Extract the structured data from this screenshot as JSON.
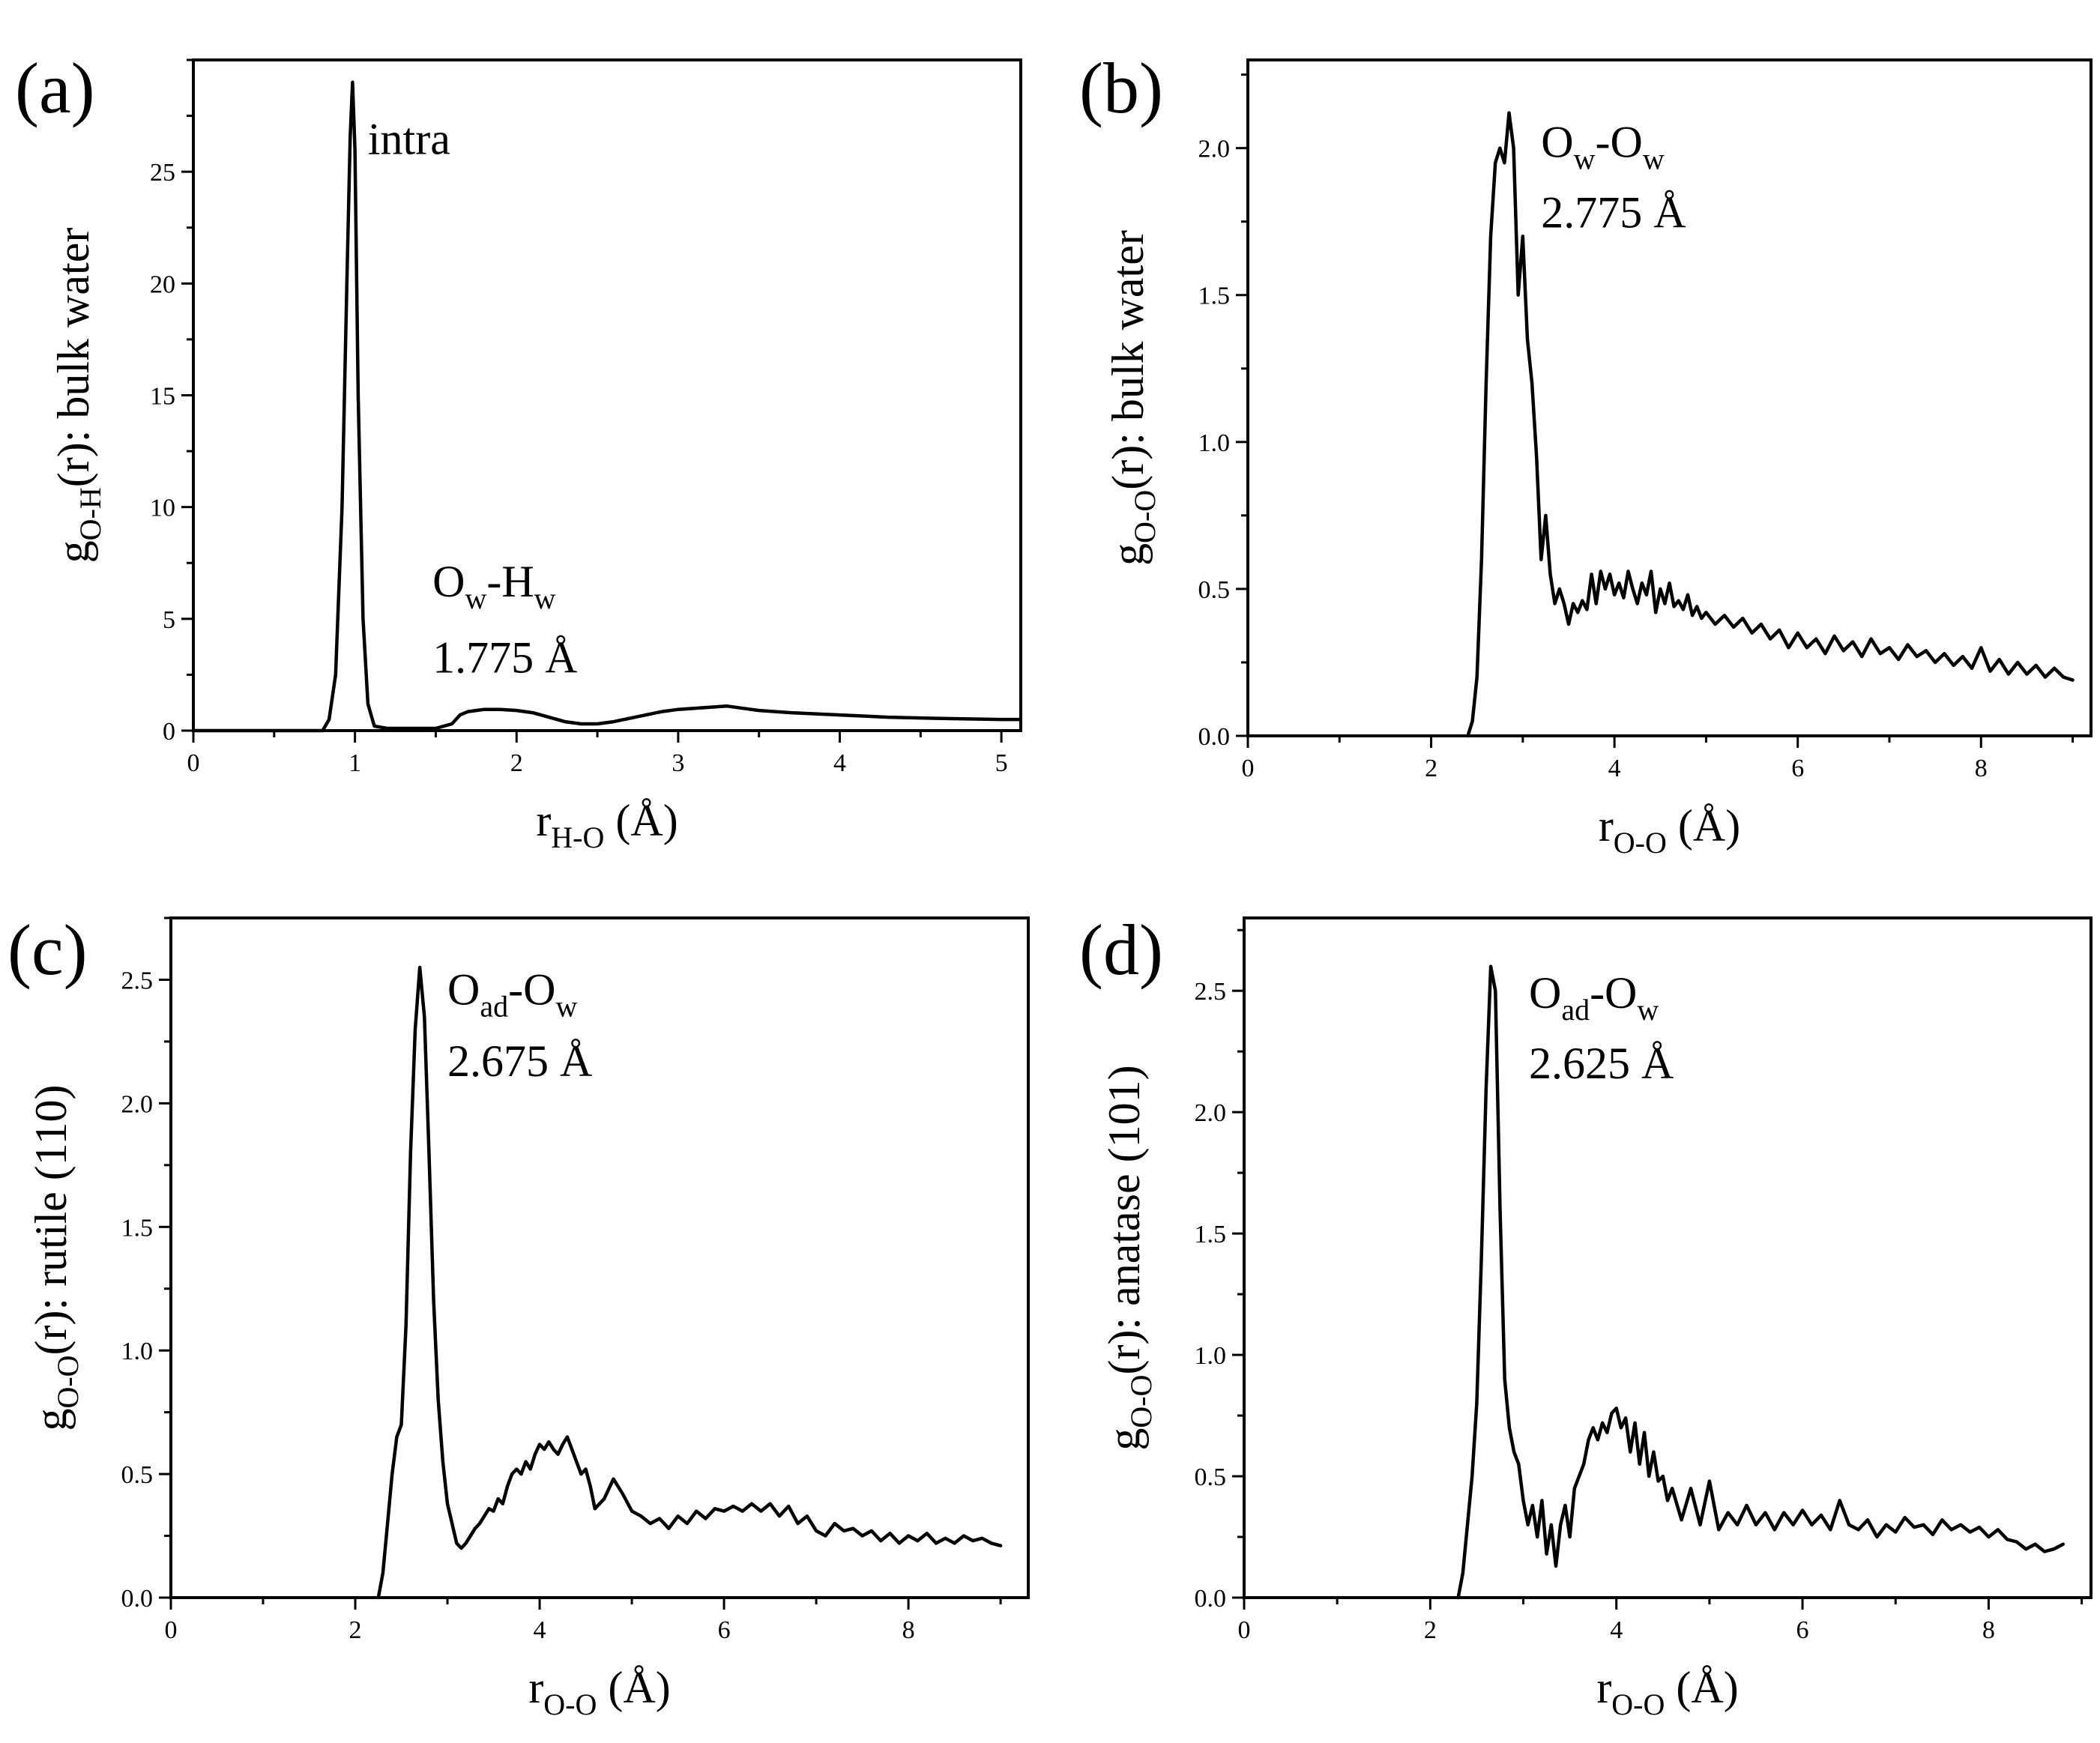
{
  "chart_data": [
    {
      "panel": "(a)",
      "type": "line",
      "xlabel": {
        "main": "r",
        "sub": "H-O",
        "unit": " (Å)"
      },
      "ylabel": {
        "main": "g",
        "sub": "O-H",
        "rest": "(r):  bulk water"
      },
      "xlim": [
        0,
        5.12
      ],
      "ylim": [
        0,
        30
      ],
      "xticks": [
        0,
        1,
        2,
        3,
        4,
        5
      ],
      "xtick_labels": [
        "0",
        "1",
        "2",
        "3",
        "4",
        "5"
      ],
      "yticks": [
        0,
        5,
        10,
        15,
        20,
        25
      ],
      "ytick_labels": [
        "0",
        "5",
        "10",
        "15",
        "20",
        "25"
      ],
      "annotations": [
        {
          "id": "intra",
          "parts": [
            {
              "t": "intra",
              "sub": false
            }
          ],
          "x": 1.08,
          "y": 25.8
        },
        {
          "id": "label-ow-hw",
          "parts": [
            {
              "t": "O",
              "sub": false
            },
            {
              "t": "w",
              "sub": true
            },
            {
              "t": "-H",
              "sub": false
            },
            {
              "t": "w",
              "sub": true
            }
          ],
          "x": 1.48,
          "y": 6.0
        },
        {
          "id": "distance-1775",
          "parts": [
            {
              "t": "1.775 Å",
              "sub": false
            }
          ],
          "x": 1.48,
          "y": 2.6
        }
      ],
      "series": [
        {
          "name": "g_O-H bulk water",
          "x": [
            0,
            0.8,
            0.84,
            0.88,
            0.92,
            0.95,
            0.97,
            0.985,
            1.0,
            1.02,
            1.05,
            1.08,
            1.12,
            1.2,
            1.5,
            1.6,
            1.65,
            1.7,
            1.75,
            1.8,
            1.9,
            2.0,
            2.1,
            2.2,
            2.3,
            2.4,
            2.5,
            2.6,
            2.7,
            2.8,
            2.9,
            3.0,
            3.1,
            3.2,
            3.3,
            3.4,
            3.5,
            3.7,
            4.0,
            4.3,
            4.6,
            5.0,
            5.12
          ],
          "y": [
            0,
            0,
            0.5,
            2.5,
            10,
            20,
            26.5,
            29,
            26,
            15,
            5,
            1.2,
            0.2,
            0.1,
            0.1,
            0.3,
            0.7,
            0.85,
            0.9,
            0.95,
            0.95,
            0.9,
            0.8,
            0.6,
            0.4,
            0.3,
            0.3,
            0.4,
            0.55,
            0.7,
            0.85,
            0.95,
            1.0,
            1.05,
            1.1,
            1.0,
            0.9,
            0.8,
            0.7,
            0.6,
            0.55,
            0.5,
            0.5
          ]
        }
      ]
    },
    {
      "panel": "(b)",
      "type": "line",
      "xlabel": {
        "main": "r",
        "sub": "O-O",
        "unit": " (Å)"
      },
      "ylabel": {
        "main": "g",
        "sub": "O-O",
        "rest": "(r):  bulk water"
      },
      "xlim": [
        0,
        9.2
      ],
      "ylim": [
        0,
        2.3
      ],
      "xticks": [
        0,
        2,
        4,
        6,
        8
      ],
      "xtick_labels": [
        "0",
        "2",
        "4",
        "6",
        "8"
      ],
      "yticks": [
        0.0,
        0.5,
        1.0,
        1.5,
        2.0
      ],
      "ytick_labels": [
        "0.0",
        "0.5",
        "1.0",
        "1.5",
        "2.0"
      ],
      "annotations": [
        {
          "id": "label-ow-ow",
          "parts": [
            {
              "t": "O",
              "sub": false
            },
            {
              "t": "w",
              "sub": true
            },
            {
              "t": "-O",
              "sub": false
            },
            {
              "t": "w",
              "sub": true
            }
          ],
          "x": 3.2,
          "y": 1.97
        },
        {
          "id": "distance-2775",
          "parts": [
            {
              "t": "2.775 Å",
              "sub": false
            }
          ],
          "x": 3.2,
          "y": 1.73
        }
      ],
      "series": [
        {
          "name": "g_O-O bulk water",
          "x": [
            2.4,
            2.45,
            2.5,
            2.55,
            2.6,
            2.65,
            2.7,
            2.75,
            2.8,
            2.85,
            2.9,
            2.95,
            3.0,
            3.05,
            3.1,
            3.15,
            3.2,
            3.25,
            3.3,
            3.35,
            3.4,
            3.45,
            3.5,
            3.55,
            3.6,
            3.65,
            3.7,
            3.75,
            3.8,
            3.85,
            3.9,
            3.95,
            4.0,
            4.05,
            4.1,
            4.15,
            4.2,
            4.25,
            4.3,
            4.35,
            4.4,
            4.45,
            4.5,
            4.55,
            4.6,
            4.65,
            4.7,
            4.75,
            4.8,
            4.85,
            4.9,
            4.95,
            5.0,
            5.1,
            5.2,
            5.3,
            5.4,
            5.5,
            5.6,
            5.7,
            5.8,
            5.9,
            6.0,
            6.1,
            6.2,
            6.3,
            6.4,
            6.5,
            6.6,
            6.7,
            6.8,
            6.9,
            7.0,
            7.1,
            7.2,
            7.3,
            7.4,
            7.5,
            7.6,
            7.7,
            7.8,
            7.9,
            8.0,
            8.1,
            8.2,
            8.3,
            8.4,
            8.5,
            8.6,
            8.7,
            8.8,
            8.9,
            9.0
          ],
          "y": [
            0.0,
            0.05,
            0.2,
            0.6,
            1.2,
            1.7,
            1.95,
            2.0,
            1.95,
            2.12,
            2.0,
            1.5,
            1.7,
            1.35,
            1.2,
            0.95,
            0.6,
            0.75,
            0.55,
            0.45,
            0.5,
            0.45,
            0.38,
            0.45,
            0.42,
            0.46,
            0.43,
            0.55,
            0.45,
            0.56,
            0.5,
            0.55,
            0.48,
            0.52,
            0.47,
            0.56,
            0.5,
            0.45,
            0.52,
            0.48,
            0.56,
            0.42,
            0.5,
            0.45,
            0.52,
            0.44,
            0.46,
            0.43,
            0.48,
            0.41,
            0.44,
            0.4,
            0.42,
            0.38,
            0.41,
            0.37,
            0.4,
            0.35,
            0.38,
            0.33,
            0.36,
            0.3,
            0.35,
            0.3,
            0.33,
            0.28,
            0.34,
            0.29,
            0.32,
            0.27,
            0.33,
            0.28,
            0.3,
            0.26,
            0.31,
            0.27,
            0.29,
            0.25,
            0.28,
            0.24,
            0.27,
            0.23,
            0.3,
            0.22,
            0.26,
            0.21,
            0.25,
            0.21,
            0.24,
            0.2,
            0.23,
            0.2,
            0.19
          ]
        }
      ]
    },
    {
      "panel": "(c)",
      "type": "line",
      "xlabel": {
        "main": "r",
        "sub": "O-O",
        "unit": " (Å)"
      },
      "ylabel": {
        "main": "g",
        "sub": "O-O",
        "rest": "(r):  rutile (110)"
      },
      "xlim": [
        0,
        9.3
      ],
      "ylim": [
        0,
        2.75
      ],
      "xticks": [
        0,
        2,
        4,
        6,
        8
      ],
      "xtick_labels": [
        "0",
        "2",
        "4",
        "6",
        "8"
      ],
      "yticks": [
        0.0,
        0.5,
        1.0,
        1.5,
        2.0,
        2.5
      ],
      "ytick_labels": [
        "0.0",
        "0.5",
        "1.0",
        "1.5",
        "2.0",
        "2.5"
      ],
      "annotations": [
        {
          "id": "label-oad-ow",
          "parts": [
            {
              "t": "O",
              "sub": false
            },
            {
              "t": "ad",
              "sub": true
            },
            {
              "t": "-O",
              "sub": false
            },
            {
              "t": "w",
              "sub": true
            }
          ],
          "x": 3.0,
          "y": 2.4
        },
        {
          "id": "distance-2675",
          "parts": [
            {
              "t": "2.675 Å",
              "sub": false
            }
          ],
          "x": 3.0,
          "y": 2.11
        }
      ],
      "series": [
        {
          "name": "g_O-O rutile (110)",
          "x": [
            2.25,
            2.3,
            2.35,
            2.4,
            2.45,
            2.5,
            2.55,
            2.6,
            2.65,
            2.7,
            2.75,
            2.8,
            2.85,
            2.9,
            2.95,
            3.0,
            3.05,
            3.1,
            3.15,
            3.2,
            3.25,
            3.3,
            3.35,
            3.4,
            3.45,
            3.5,
            3.55,
            3.6,
            3.65,
            3.7,
            3.75,
            3.8,
            3.85,
            3.9,
            3.95,
            4.0,
            4.05,
            4.1,
            4.15,
            4.2,
            4.25,
            4.3,
            4.35,
            4.4,
            4.45,
            4.5,
            4.55,
            4.6,
            4.7,
            4.8,
            4.9,
            5.0,
            5.1,
            5.2,
            5.3,
            5.4,
            5.5,
            5.6,
            5.7,
            5.8,
            5.9,
            6.0,
            6.1,
            6.2,
            6.3,
            6.4,
            6.5,
            6.6,
            6.7,
            6.8,
            6.9,
            7.0,
            7.1,
            7.2,
            7.3,
            7.4,
            7.5,
            7.6,
            7.7,
            7.8,
            7.9,
            8.0,
            8.1,
            8.2,
            8.3,
            8.4,
            8.5,
            8.6,
            8.7,
            8.8,
            8.9,
            9.0
          ],
          "y": [
            0.0,
            0.1,
            0.3,
            0.5,
            0.65,
            0.7,
            1.1,
            1.8,
            2.3,
            2.55,
            2.35,
            1.8,
            1.2,
            0.8,
            0.55,
            0.38,
            0.3,
            0.22,
            0.2,
            0.22,
            0.25,
            0.28,
            0.3,
            0.33,
            0.36,
            0.35,
            0.4,
            0.38,
            0.45,
            0.5,
            0.52,
            0.5,
            0.55,
            0.52,
            0.58,
            0.62,
            0.6,
            0.63,
            0.6,
            0.58,
            0.62,
            0.65,
            0.6,
            0.55,
            0.5,
            0.52,
            0.45,
            0.36,
            0.4,
            0.48,
            0.42,
            0.35,
            0.33,
            0.3,
            0.32,
            0.28,
            0.33,
            0.3,
            0.35,
            0.32,
            0.36,
            0.35,
            0.37,
            0.35,
            0.38,
            0.35,
            0.38,
            0.33,
            0.37,
            0.3,
            0.33,
            0.27,
            0.25,
            0.3,
            0.27,
            0.28,
            0.25,
            0.27,
            0.23,
            0.26,
            0.22,
            0.25,
            0.23,
            0.26,
            0.22,
            0.24,
            0.22,
            0.25,
            0.23,
            0.24,
            0.22,
            0.21
          ]
        }
      ]
    },
    {
      "panel": "(d)",
      "type": "line",
      "xlabel": {
        "main": "r",
        "sub": "O-O",
        "unit": " (Å)"
      },
      "ylabel": {
        "main": "g",
        "sub": "O-O",
        "rest": "(r):  anatase (101)"
      },
      "xlim": [
        0,
        9.1
      ],
      "ylim": [
        0,
        2.8
      ],
      "xticks": [
        0,
        2,
        4,
        6,
        8
      ],
      "xtick_labels": [
        "0",
        "2",
        "4",
        "6",
        "8"
      ],
      "yticks": [
        0.0,
        0.5,
        1.0,
        1.5,
        2.0,
        2.5
      ],
      "ytick_labels": [
        "0.0",
        "0.5",
        "1.0",
        "1.5",
        "2.0",
        "2.5"
      ],
      "annotations": [
        {
          "id": "label-oad-ow",
          "parts": [
            {
              "t": "O",
              "sub": false
            },
            {
              "t": "ad",
              "sub": true
            },
            {
              "t": "-O",
              "sub": false
            },
            {
              "t": "w",
              "sub": true
            }
          ],
          "x": 3.06,
          "y": 2.43
        },
        {
          "id": "distance-2625",
          "parts": [
            {
              "t": "2.625 Å",
              "sub": false
            }
          ],
          "x": 3.06,
          "y": 2.14
        }
      ],
      "series": [
        {
          "name": "g_O-O anatase (101)",
          "x": [
            2.3,
            2.35,
            2.4,
            2.45,
            2.5,
            2.55,
            2.6,
            2.65,
            2.7,
            2.75,
            2.8,
            2.85,
            2.9,
            2.95,
            3.0,
            3.05,
            3.1,
            3.15,
            3.2,
            3.25,
            3.3,
            3.35,
            3.4,
            3.45,
            3.5,
            3.55,
            3.6,
            3.65,
            3.7,
            3.75,
            3.8,
            3.85,
            3.9,
            3.95,
            4.0,
            4.05,
            4.1,
            4.15,
            4.2,
            4.25,
            4.3,
            4.35,
            4.4,
            4.45,
            4.5,
            4.55,
            4.6,
            4.7,
            4.8,
            4.9,
            5.0,
            5.1,
            5.2,
            5.3,
            5.4,
            5.5,
            5.6,
            5.7,
            5.8,
            5.9,
            6.0,
            6.1,
            6.2,
            6.3,
            6.4,
            6.5,
            6.6,
            6.7,
            6.8,
            6.9,
            7.0,
            7.1,
            7.2,
            7.3,
            7.4,
            7.5,
            7.6,
            7.7,
            7.8,
            7.9,
            8.0,
            8.1,
            8.2,
            8.3,
            8.4,
            8.5,
            8.6,
            8.7,
            8.8
          ],
          "y": [
            0.0,
            0.1,
            0.3,
            0.5,
            0.8,
            1.4,
            2.1,
            2.6,
            2.5,
            1.6,
            0.9,
            0.7,
            0.6,
            0.55,
            0.4,
            0.3,
            0.38,
            0.25,
            0.4,
            0.18,
            0.3,
            0.13,
            0.3,
            0.38,
            0.25,
            0.45,
            0.5,
            0.55,
            0.65,
            0.7,
            0.65,
            0.72,
            0.68,
            0.76,
            0.78,
            0.7,
            0.74,
            0.6,
            0.72,
            0.55,
            0.68,
            0.5,
            0.6,
            0.48,
            0.5,
            0.4,
            0.45,
            0.32,
            0.45,
            0.3,
            0.48,
            0.28,
            0.35,
            0.3,
            0.38,
            0.3,
            0.35,
            0.28,
            0.35,
            0.3,
            0.36,
            0.3,
            0.34,
            0.28,
            0.4,
            0.3,
            0.28,
            0.32,
            0.25,
            0.3,
            0.27,
            0.33,
            0.29,
            0.3,
            0.26,
            0.32,
            0.28,
            0.3,
            0.27,
            0.29,
            0.25,
            0.28,
            0.24,
            0.23,
            0.2,
            0.22,
            0.19,
            0.2,
            0.22
          ]
        }
      ]
    }
  ]
}
